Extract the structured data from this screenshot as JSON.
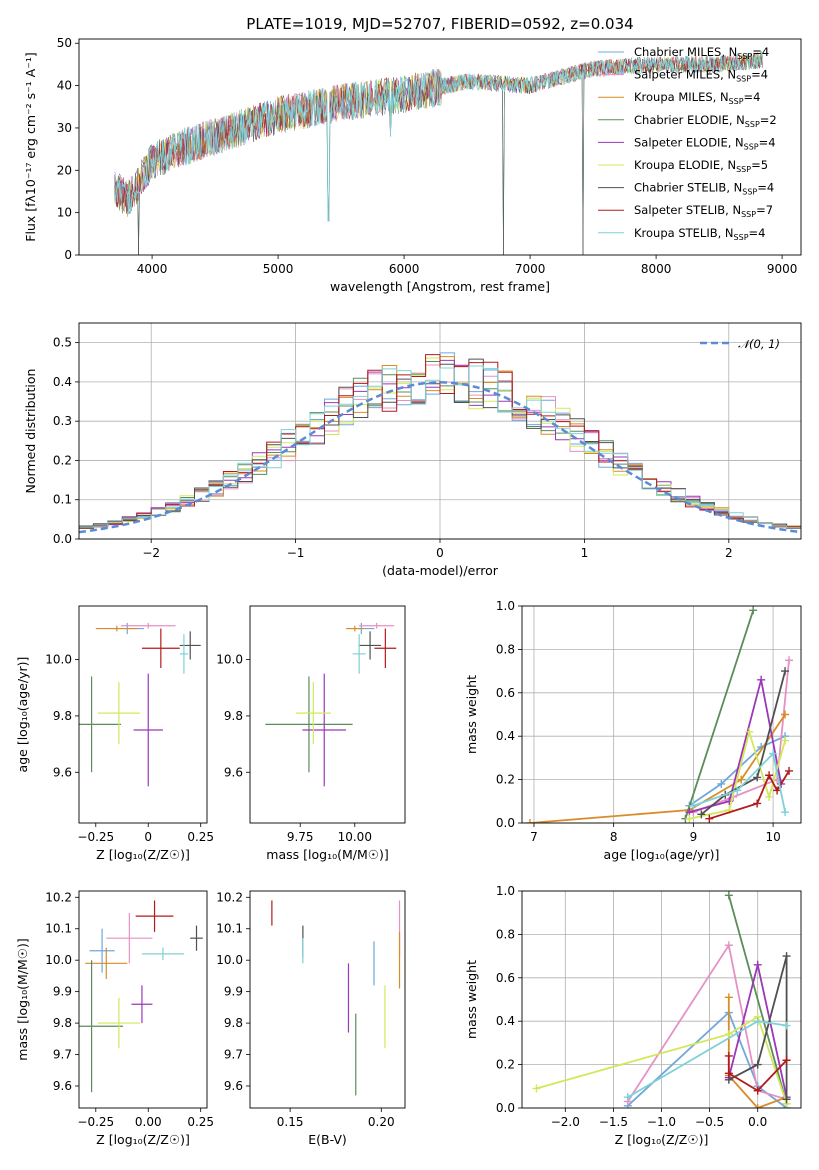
{
  "figure_title": "PLATE=1019, MJD=52707, FIBERID=0592, z=0.034",
  "colors": [
    "#6fa8dc",
    "#e691c4",
    "#d98c27",
    "#5b8c5a",
    "#9b37b8",
    "#d2e85a",
    "#505050",
    "#b31b1b",
    "#7ed1d6"
  ],
  "chart_data": [
    {
      "type": "line",
      "title": "PLATE=1019, MJD=52707, FIBERID=0592, z=0.034",
      "xlabel": "wavelength [Angstrom, rest frame]",
      "ylabel": "Flux [fλ10⁻¹⁷ erg cm⁻² s⁻¹ A⁻¹]",
      "xlim": [
        3420,
        9150
      ],
      "ylim": [
        0,
        51
      ],
      "xticks": [
        4000,
        5000,
        6000,
        7000,
        8000,
        9000
      ],
      "yticks": [
        0,
        10,
        20,
        30,
        40,
        50
      ],
      "grid": false,
      "legend_position": "top-right",
      "legend": [
        "Chabrier MILES, N_SSP=4",
        "Salpeter MILES, N_SSP=4",
        "Kroupa MILES, N_SSP=4",
        "Chabrier ELODIE, N_SSP=2",
        "Salpeter ELODIE, N_SSP=4",
        "Kroupa ELODIE, N_SSP=5",
        "Chabrier STELIB, N_SSP=4",
        "Salpeter STELIB, N_SSP=7",
        "Kroupa STELIB, N_SSP=4"
      ],
      "continuum": {
        "x": [
          3700,
          3800,
          4000,
          4200,
          4500,
          5000,
          5500,
          6000,
          6500,
          7000,
          7500,
          8000,
          8500,
          8850
        ],
        "y": [
          16,
          13,
          22,
          25,
          28,
          33,
          36,
          38,
          41,
          40,
          44,
          45,
          45,
          46
        ]
      },
      "sharp_dips": [
        [
          3890,
          0
        ],
        [
          5400,
          8
        ],
        [
          5890,
          28
        ],
        [
          6790,
          0
        ],
        [
          7420,
          0
        ]
      ]
    },
    {
      "type": "histogram",
      "xlabel": "(data-model)/error",
      "ylabel": "Normed distribution",
      "xlim": [
        -2.5,
        2.5
      ],
      "ylim": [
        0,
        0.55
      ],
      "xticks": [
        -2,
        -1,
        0,
        1,
        2
      ],
      "yticks": [
        0.0,
        0.1,
        0.2,
        0.3,
        0.4,
        0.5
      ],
      "grid": true,
      "legend_position": "top-right",
      "legend": [
        "𝒩(0, 1)"
      ],
      "bin_width": 0.1,
      "reference_curve": "normal(0,1)"
    },
    {
      "type": "scatter",
      "xlabel": "Z [log₁₀(Z/Z☉)]",
      "ylabel": "age  [log₁₀(age/yr)]",
      "xlim": [
        -0.33,
        0.28
      ],
      "ylim": [
        9.42,
        10.19
      ],
      "xticks": [
        -0.25,
        0.0,
        0.25
      ],
      "yticks": [
        9.6,
        9.8,
        10.0
      ],
      "points": [
        [
          -0.1,
          10.11,
          0.08,
          0.02
        ],
        [
          0.0,
          10.12,
          0.13,
          0.01
        ],
        [
          -0.15,
          10.11,
          0.1,
          0.01
        ],
        [
          -0.27,
          9.77,
          0.14,
          0.17
        ],
        [
          0.0,
          9.75,
          0.07,
          0.2
        ],
        [
          -0.14,
          9.81,
          0.1,
          0.11
        ],
        [
          0.2,
          10.05,
          0.05,
          0.05
        ],
        [
          0.06,
          10.04,
          0.09,
          0.07
        ],
        [
          0.17,
          10.02,
          0.02,
          0.07
        ]
      ]
    },
    {
      "type": "scatter",
      "xlabel": "mass [log₁₀(M/M☉)]",
      "ylabel": "",
      "xlim": [
        9.52,
        10.23
      ],
      "ylim": [
        9.42,
        10.19
      ],
      "xticks": [
        9.75,
        10.0
      ],
      "yticks": [
        9.6,
        9.8,
        10.0
      ],
      "points": [
        [
          10.03,
          10.11,
          0.06,
          0.02
        ],
        [
          10.1,
          10.12,
          0.08,
          0.01
        ],
        [
          10.0,
          10.11,
          0.04,
          0.01
        ],
        [
          9.79,
          9.77,
          0.2,
          0.17
        ],
        [
          9.86,
          9.75,
          0.1,
          0.2
        ],
        [
          9.81,
          9.81,
          0.08,
          0.11
        ],
        [
          10.07,
          10.05,
          0.05,
          0.05
        ],
        [
          10.14,
          10.04,
          0.05,
          0.07
        ],
        [
          10.02,
          10.02,
          0.03,
          0.07
        ]
      ]
    },
    {
      "type": "line",
      "xlabel": "age  [log₁₀(age/yr)]",
      "ylabel": "mass weight",
      "xlim": [
        6.85,
        10.35
      ],
      "ylim": [
        0,
        1
      ],
      "xticks": [
        7,
        8,
        9,
        10
      ],
      "yticks": [
        0.0,
        0.2,
        0.4,
        0.6,
        0.8,
        1.0
      ],
      "grid": true,
      "series": [
        {
          "x": [
            8.95,
            9.35,
            9.85,
            10.15
          ],
          "y": [
            0.08,
            0.18,
            0.35,
            0.4
          ]
        },
        {
          "x": [
            9.0,
            9.5,
            10.05,
            10.2
          ],
          "y": [
            0.05,
            0.12,
            0.2,
            0.75
          ]
        },
        {
          "x": [
            6.95,
            8.95,
            9.6,
            10.15
          ],
          "y": [
            0.0,
            0.06,
            0.2,
            0.5
          ]
        },
        {
          "x": [
            8.9,
            9.75
          ],
          "y": [
            0.02,
            0.98
          ]
        },
        {
          "x": [
            8.95,
            9.45,
            9.85,
            10.1
          ],
          "y": [
            0.05,
            0.1,
            0.66,
            0.18
          ]
        },
        {
          "x": [
            8.95,
            9.45,
            9.7,
            9.95,
            10.15
          ],
          "y": [
            0.02,
            0.06,
            0.42,
            0.12,
            0.38
          ]
        },
        {
          "x": [
            9.1,
            9.4,
            9.8,
            10.15
          ],
          "y": [
            0.04,
            0.13,
            0.21,
            0.7
          ]
        },
        {
          "x": [
            9.2,
            9.8,
            9.95,
            10.05,
            10.2
          ],
          "y": [
            0.02,
            0.09,
            0.22,
            0.15,
            0.24
          ]
        },
        {
          "x": [
            9.0,
            9.55,
            10.0,
            10.15
          ],
          "y": [
            0.08,
            0.15,
            0.32,
            0.05
          ]
        }
      ]
    },
    {
      "type": "scatter",
      "xlabel": "Z [log₁₀(Z/Z☉)]",
      "ylabel": "mass [log₁₀(M/M☉)]",
      "xlim": [
        -0.33,
        0.28
      ],
      "ylim": [
        9.53,
        10.22
      ],
      "xticks": [
        -0.25,
        0.0,
        0.25
      ],
      "yticks": [
        9.6,
        9.7,
        9.8,
        9.9,
        10.0,
        10.1,
        10.2
      ],
      "points": [
        [
          -0.22,
          10.03,
          0.06,
          0.07
        ],
        [
          -0.09,
          10.07,
          0.11,
          0.08
        ],
        [
          -0.2,
          9.99,
          0.1,
          0.05
        ],
        [
          -0.27,
          9.79,
          0.15,
          0.21
        ],
        [
          -0.03,
          9.86,
          0.05,
          0.06
        ],
        [
          -0.14,
          9.8,
          0.1,
          0.08
        ],
        [
          0.23,
          10.07,
          0.03,
          0.04
        ],
        [
          0.03,
          10.14,
          0.09,
          0.05
        ],
        [
          0.07,
          10.02,
          0.1,
          0.02
        ]
      ]
    },
    {
      "type": "scatter",
      "xlabel": "E(B-V)",
      "ylabel": "",
      "xlim": [
        0.128,
        0.213
      ],
      "ylim": [
        9.53,
        10.22
      ],
      "xticks": [
        0.15,
        0.2
      ],
      "yticks": [
        9.6,
        9.7,
        9.8,
        9.9,
        10.0,
        10.1,
        10.2
      ],
      "points": [
        [
          0.196,
          9.99,
          0.0,
          0.07
        ],
        [
          0.21,
          10.1,
          0.0,
          0.09
        ],
        [
          0.21,
          10.0,
          0.0,
          0.09
        ],
        [
          0.186,
          9.7,
          0.0,
          0.13
        ],
        [
          0.182,
          9.88,
          0.0,
          0.11
        ],
        [
          0.202,
          9.82,
          0.0,
          0.1
        ],
        [
          0.157,
          10.06,
          0.0,
          0.05
        ],
        [
          0.14,
          10.15,
          0.0,
          0.04
        ],
        [
          0.157,
          10.03,
          0.0,
          0.04
        ]
      ]
    },
    {
      "type": "line",
      "xlabel": "Z [log₁₀(Z/Z☉)]",
      "ylabel": "mass weight",
      "xlim": [
        -2.45,
        0.45
      ],
      "ylim": [
        0,
        1
      ],
      "xticks": [
        -2.0,
        -1.5,
        -1.0,
        -0.5,
        0.0
      ],
      "yticks": [
        0.0,
        0.2,
        0.4,
        0.6,
        0.8,
        1.0
      ],
      "grid": true,
      "series": [
        {
          "x": [
            -1.35,
            -0.3,
            0.0,
            0.3
          ],
          "y": [
            0.01,
            0.44,
            0.1,
            0.0
          ]
        },
        {
          "x": [
            -1.35,
            -0.3,
            0.0,
            0.3
          ],
          "y": [
            0.03,
            0.75,
            0.08,
            0.04
          ]
        },
        {
          "x": [
            -0.3,
            -0.3,
            0.0,
            0.3
          ],
          "y": [
            0.51,
            0.15,
            0.0,
            0.05
          ]
        },
        {
          "x": [
            -0.3,
            0.3
          ],
          "y": [
            0.98,
            0.02
          ]
        },
        {
          "x": [
            -0.3,
            0.0,
            0.3
          ],
          "y": [
            0.14,
            0.66,
            0.05
          ]
        },
        {
          "x": [
            -2.3,
            -0.3,
            0.0,
            0.3
          ],
          "y": [
            0.09,
            0.34,
            0.42,
            0.02
          ]
        },
        {
          "x": [
            -0.3,
            0.0,
            0.3,
            0.3
          ],
          "y": [
            0.13,
            0.2,
            0.7,
            0.04
          ]
        },
        {
          "x": [
            -0.3,
            -0.3,
            0.0,
            0.3
          ],
          "y": [
            0.24,
            0.16,
            0.08,
            0.22
          ]
        },
        {
          "x": [
            -1.35,
            0.0,
            0.3
          ],
          "y": [
            0.05,
            0.4,
            0.38
          ]
        }
      ]
    }
  ]
}
